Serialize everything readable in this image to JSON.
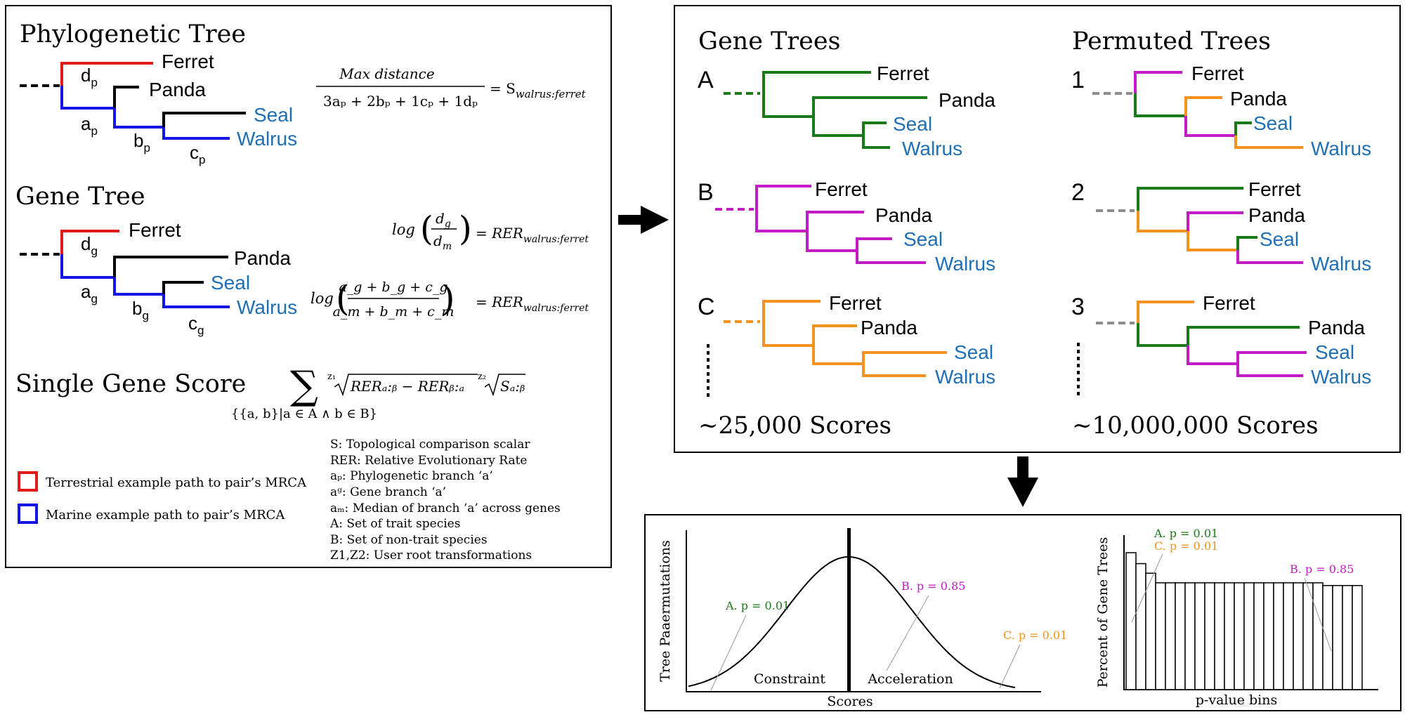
{
  "colors": {
    "terrestrial": "#e31a1c",
    "marine": "#1414e6",
    "neutral": "#000000",
    "species_blue": "#1f6fb5",
    "gene_a": "#1a7a1a",
    "gene_b": "#c21cc4",
    "gene_c": "#f4921f",
    "dashed_gray": "#8c8c8c"
  },
  "left_panel": {
    "phylo_title": "Phylogenetic Tree",
    "gene_title": "Gene Tree",
    "single_title": "Single Gene Score",
    "species": {
      "ferret": "Ferret",
      "panda": "Panda",
      "seal": "Seal",
      "walrus": "Walrus"
    },
    "phylo_branches": {
      "d": "d",
      "a": "a",
      "b": "b",
      "c": "c",
      "sub": "p"
    },
    "gene_branches": {
      "d": "d",
      "a": "a",
      "b": "b",
      "c": "c",
      "sub": "g"
    },
    "formula_s": {
      "numerator": "Max distance",
      "denominator": "3aₚ + 2bₚ + 1cₚ + 1dₚ",
      "rhs": "= S",
      "rhs_sub": "walrus:ferret"
    },
    "formula_rer1": {
      "lhs": "log",
      "num": "d",
      "num_sub": "g",
      "den": "d",
      "den_sub": "m",
      "rhs": "= RER",
      "rhs_sub": "walrus:ferret"
    },
    "formula_rer2": {
      "lhs": "log",
      "num": "a_g + b_g + c_g",
      "den": "a_m + b_m + c_m",
      "rhs": "= RER",
      "rhs_sub": "walrus:ferret"
    },
    "formula_score": {
      "sum_symbol": "∑",
      "sum_range": "{{a, b}|a ∈ A ∧ b ∈ B}",
      "root1": "z₁",
      "term1": "RERₐ:ᵦ − RERᵦ:ₐ",
      "root2": "z₂",
      "term2": "Sₐ:ᵦ"
    },
    "legend": {
      "terrestrial": "Terrestrial example path to pair’s MRCA",
      "marine": "Marine example path to pair’s MRCA"
    },
    "definitions": [
      "S: Topological comparison scalar",
      "RER: Relative Evolutionary Rate",
      "aₚ: Phylogenetic branch ‘a’",
      "aᵍ: Gene branch ‘a’",
      "aₘ: Median of branch ‘a’ across genes",
      "A: Set of trait species",
      "B: Set of non-trait species",
      "Z1,Z2: User root transformations"
    ]
  },
  "right_panel": {
    "gene_trees_title": "Gene Trees",
    "permuted_title": "Permuted Trees",
    "gene_labels": [
      "A",
      "B",
      "C"
    ],
    "perm_labels": [
      "1",
      "2",
      "3"
    ],
    "gene_count": "~25,000 Scores",
    "perm_count": "~10,000,000 Scores",
    "species": {
      "ferret": "Ferret",
      "panda": "Panda",
      "seal": "Seal",
      "walrus": "Walrus"
    }
  },
  "bottom_panel": {
    "dist_ylabel": "Tree Paaermutations",
    "dist_xlabel": "Scores",
    "constraint": "Constraint",
    "acceleration": "Acceleration",
    "dist_annotations": {
      "a": "A. p = 0.01",
      "b": "B. p = 0.85",
      "c": "C. p = 0.01"
    },
    "hist_ylabel": "Percent of Gene Trees",
    "hist_xlabel": "p-value bins",
    "hist_annotations": {
      "a": "A. p = 0.01",
      "c": "C. p = 0.01",
      "b": "B. p = 0.85"
    }
  },
  "chart_data": {
    "type": "bar",
    "xlabel": "p-value bins",
    "ylabel": "Percent of Gene Trees",
    "relative_values": [
      1.0,
      0.92,
      0.85,
      0.78,
      0.78,
      0.78,
      0.78,
      0.78,
      0.78,
      0.78,
      0.78,
      0.78,
      0.78,
      0.78,
      0.78,
      0.78,
      0.78,
      0.78,
      0.78,
      0.78,
      0.76,
      0.76,
      0.76,
      0.76
    ]
  }
}
